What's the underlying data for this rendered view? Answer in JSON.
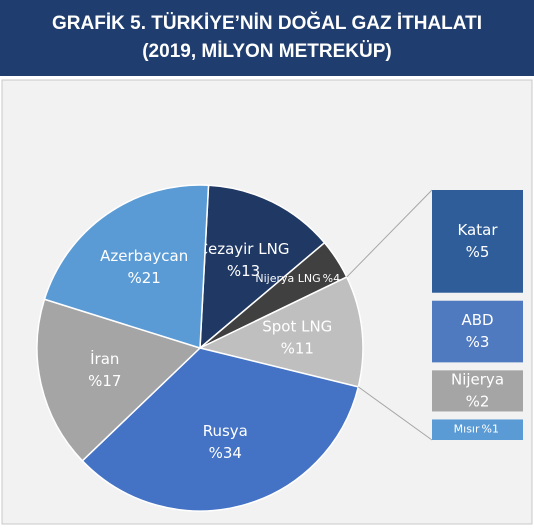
{
  "chart_data": {
    "type": "pie",
    "title": "GRAFİK 5. TÜRKİYE’NİN DOĞAL GAZ İTHALATI",
    "subtitle": "(2019, MİLYON METREKÜP)",
    "categories": [
      "Cezayir LNG",
      "Nijerya LNG",
      "Spot LNG",
      "Rusya",
      "İran",
      "Azerbaycan"
    ],
    "values": [
      13,
      4,
      11,
      34,
      17,
      21
    ],
    "value_labels": [
      "%13",
      "%4",
      "%11",
      "%34",
      "%17",
      "%21"
    ],
    "colors": [
      "#1f3864",
      "#404040",
      "#bfbfbf",
      "#4472c4",
      "#a5a5a5",
      "#5b9bd5"
    ],
    "bar_of_pie": {
      "categories": [
        "Katar",
        "ABD",
        "Nijerya",
        "Mısır"
      ],
      "values": [
        5,
        3,
        2,
        1
      ],
      "value_labels": [
        "%5",
        "%3",
        "%2",
        "%1"
      ],
      "colors": [
        "#2f5d9a",
        "#4f7ac0",
        "#a5a5a5",
        "#5b9bd5"
      ]
    }
  }
}
